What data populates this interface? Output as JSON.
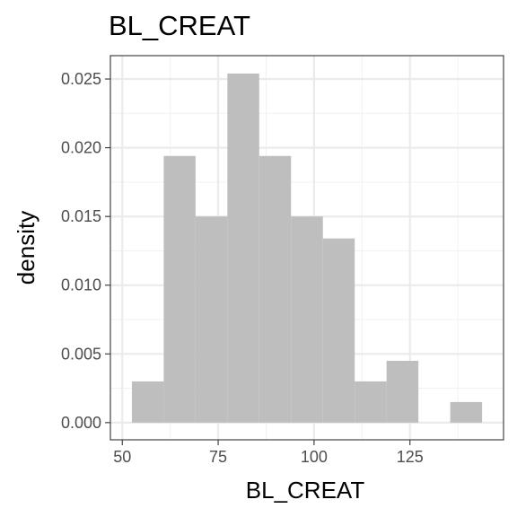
{
  "chart_data": {
    "type": "bar",
    "subtype": "histogram",
    "title": "BL_CREAT",
    "xlabel": "BL_CREAT",
    "ylabel": "density",
    "bin_width": 8.3,
    "bins": [
      {
        "x0": 52.5,
        "x1": 60.8,
        "density": 0.003
      },
      {
        "x0": 60.8,
        "x1": 69.1,
        "density": 0.0194
      },
      {
        "x0": 69.1,
        "x1": 77.4,
        "density": 0.015
      },
      {
        "x0": 77.4,
        "x1": 85.7,
        "density": 0.0254
      },
      {
        "x0": 85.7,
        "x1": 94.0,
        "density": 0.0194
      },
      {
        "x0": 94.0,
        "x1": 102.3,
        "density": 0.015
      },
      {
        "x0": 102.3,
        "x1": 110.6,
        "density": 0.0134
      },
      {
        "x0": 110.6,
        "x1": 118.9,
        "density": 0.003
      },
      {
        "x0": 118.9,
        "x1": 127.2,
        "density": 0.0045
      },
      {
        "x0": 127.2,
        "x1": 135.5,
        "density": 0.0
      },
      {
        "x0": 135.5,
        "x1": 143.8,
        "density": 0.0015
      }
    ],
    "xlim": [
      46.9,
      149.4
    ],
    "ylim": [
      -0.00125,
      0.0267
    ],
    "x_ticks": [
      50,
      75,
      100,
      125
    ],
    "x_tick_labels": [
      "50",
      "75",
      "100",
      "125"
    ],
    "y_ticks": [
      0,
      0.005,
      0.01,
      0.015,
      0.02,
      0.025
    ],
    "y_tick_labels": [
      "0.000",
      "0.005",
      "0.010",
      "0.015",
      "0.020",
      "0.025"
    ],
    "grid": true,
    "bar_color": "#bebebe",
    "grid_major_color": "#ebebeb",
    "grid_minor_color": "#f2f2f2",
    "panel_border_color": "#333333"
  }
}
